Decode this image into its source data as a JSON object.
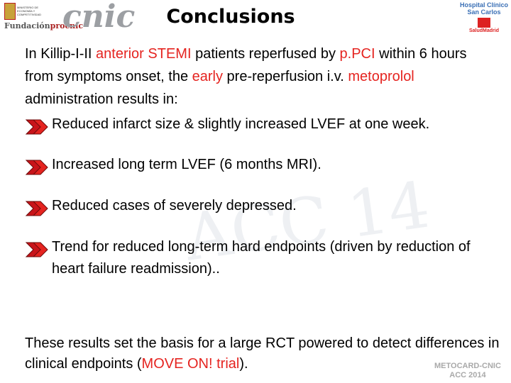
{
  "header": {
    "title": "Conclusions",
    "ministry": "MINISTERIO DE ECONOMÍA Y COMPETITIVIDAD",
    "fundacion": [
      "Fundación",
      "procnic"
    ],
    "cnic": "cnic",
    "hospital": [
      "Hospital Clínico",
      "San Carlos"
    ],
    "salud": "SaludMadrid"
  },
  "highlight_color": "#e52420",
  "intro": [
    {
      "text": "In Killip-I-II ",
      "highlight": false
    },
    {
      "text": "anterior STEMI",
      "highlight": true
    },
    {
      "text": " patients reperfused by ",
      "highlight": false
    },
    {
      "text": "p.PCI",
      "highlight": true
    },
    {
      "text": " within 6 hours from symptoms onset, the ",
      "highlight": false
    },
    {
      "text": "early",
      "highlight": true
    },
    {
      "text": " pre-reperfusion i.v. ",
      "highlight": false
    },
    {
      "text": "metoprolol",
      "highlight": true
    },
    {
      "text": " administration results in:",
      "highlight": false
    }
  ],
  "bullets": [
    "Reduced infarct size & slightly increased LVEF at one week.",
    "Increased long term LVEF (6 months MRI).",
    "Reduced cases of severely depressed.",
    "Trend for reduced long-term hard endpoints (driven by reduction of heart failure readmission).."
  ],
  "conclusion": [
    {
      "text": "These results set the basis for a large RCT powered to detect differences in clinical endpoints (",
      "highlight": false
    },
    {
      "text": "MOVE ON! trial",
      "highlight": true
    },
    {
      "text": ").",
      "highlight": false
    }
  ],
  "watermark": "ACC 14",
  "footer": [
    "METOCARD-CNIC",
    "ACC 2014"
  ]
}
